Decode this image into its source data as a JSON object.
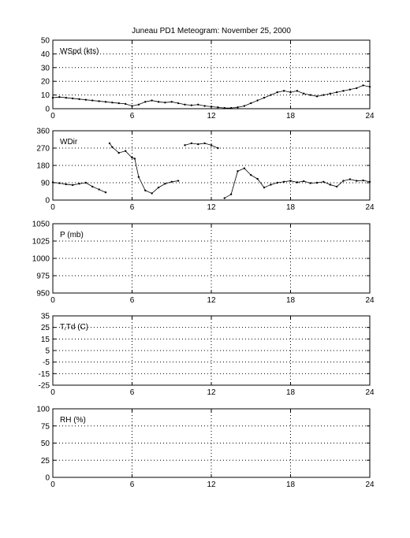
{
  "chart_data": {
    "title": "Juneau PD1 Meteogram:  November 25, 2000",
    "x_range": [
      0,
      24
    ],
    "x_ticks": [
      0,
      6,
      12,
      18,
      24
    ],
    "grid": true,
    "panels": [
      {
        "label": "WSpd (kts)",
        "type": "scatter",
        "ylim": [
          0,
          50
        ],
        "y_ticks": [
          0,
          10,
          20,
          30,
          40,
          50
        ],
        "x": [
          0,
          0.5,
          1,
          1.5,
          2,
          2.5,
          3,
          3.5,
          4,
          4.5,
          5,
          5.5,
          6,
          6.5,
          7,
          7.5,
          8,
          8.5,
          9,
          9.5,
          10,
          10.5,
          11,
          11.5,
          12,
          12.5,
          13,
          13.5,
          14,
          14.5,
          15,
          15.5,
          16,
          16.5,
          17,
          17.5,
          18,
          18.5,
          19,
          19.5,
          20,
          20.5,
          21,
          21.5,
          22,
          22.5,
          23,
          23.5,
          24
        ],
        "y": [
          8,
          8.5,
          8,
          7.5,
          7,
          6.5,
          6,
          5.5,
          5,
          4.5,
          4,
          3.5,
          2,
          3,
          5,
          6,
          5,
          4.5,
          5,
          4,
          3,
          2.5,
          3,
          2,
          1.5,
          1,
          0.5,
          0.5,
          1,
          2,
          4,
          6,
          8,
          10,
          12,
          13,
          12,
          13,
          11,
          10,
          9,
          10,
          11,
          12,
          13,
          14,
          15,
          17,
          16
        ]
      },
      {
        "label": "WDir",
        "type": "scatter",
        "ylim": [
          0,
          360
        ],
        "y_ticks": [
          0,
          90,
          180,
          270,
          360
        ],
        "x": [
          0,
          0.5,
          1,
          1.5,
          2,
          2.5,
          3,
          3.5,
          4,
          4.3,
          4.5,
          5,
          5.5,
          6,
          6.2,
          6.5,
          7,
          7.5,
          8,
          8.5,
          9,
          9.5,
          10,
          10.5,
          11,
          11.5,
          12,
          12.5,
          13,
          13.5,
          14,
          14.5,
          15,
          15.5,
          16,
          16.5,
          17,
          17.5,
          18,
          18.5,
          19,
          19.5,
          20,
          20.5,
          21,
          21.5,
          22,
          22.5,
          23,
          23.5,
          24
        ],
        "y": [
          92,
          88,
          82,
          78,
          85,
          90,
          70,
          55,
          40,
          295,
          275,
          245,
          255,
          220,
          215,
          120,
          50,
          35,
          65,
          85,
          95,
          100,
          285,
          295,
          290,
          295,
          285,
          270,
          10,
          30,
          150,
          165,
          130,
          110,
          65,
          80,
          90,
          95,
          100,
          92,
          98,
          88,
          90,
          95,
          80,
          70,
          100,
          108,
          100,
          102,
          95
        ]
      },
      {
        "label": "P (mb)",
        "type": "line",
        "ylim": [
          950,
          1050
        ],
        "y_ticks": [
          950,
          975,
          1000,
          1025,
          1050
        ],
        "x": [],
        "y": []
      },
      {
        "label": "T,Td (C)",
        "type": "line",
        "ylim": [
          -25,
          35
        ],
        "y_ticks": [
          -25,
          -15,
          -5,
          5,
          15,
          25,
          35
        ],
        "x": [],
        "y": []
      },
      {
        "label": "RH (%)",
        "type": "line",
        "ylim": [
          0,
          100
        ],
        "y_ticks": [
          0,
          25,
          50,
          75,
          100
        ],
        "x": [],
        "y": []
      }
    ]
  }
}
